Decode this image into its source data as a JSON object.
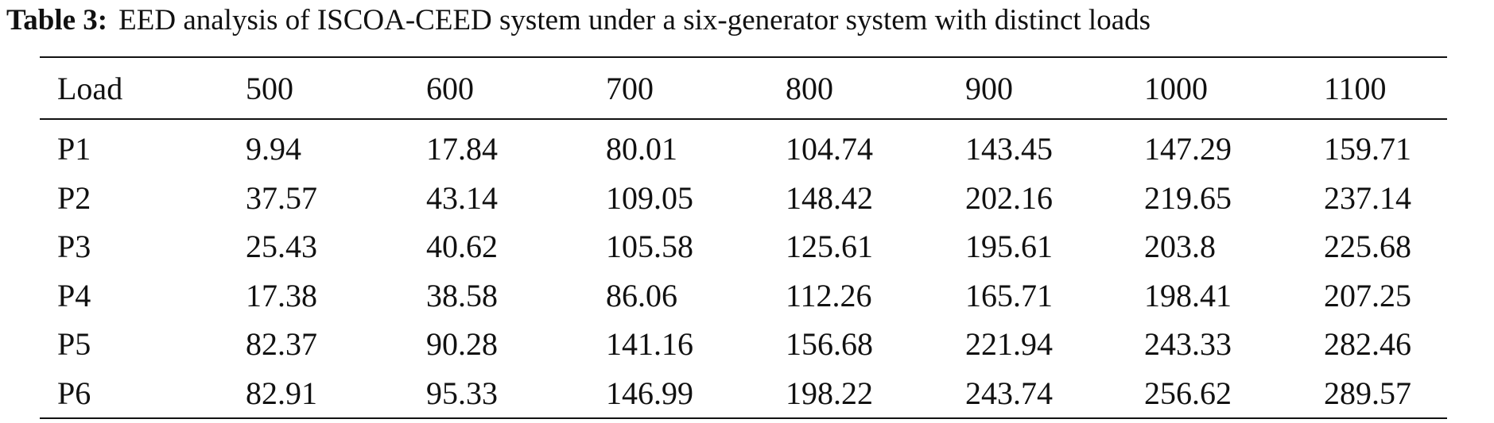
{
  "caption": {
    "label": "Table 3:",
    "text": "EED analysis of ISCOA-CEED system under a six-generator system with distinct loads"
  },
  "table": {
    "header": [
      "Load",
      "500",
      "600",
      "700",
      "800",
      "900",
      "1000",
      "1100"
    ],
    "rows": [
      [
        "P1",
        "9.94",
        "17.84",
        "80.01",
        "104.74",
        "143.45",
        "147.29",
        "159.71"
      ],
      [
        "P2",
        "37.57",
        "43.14",
        "109.05",
        "148.42",
        "202.16",
        "219.65",
        "237.14"
      ],
      [
        "P3",
        "25.43",
        "40.62",
        "105.58",
        "125.61",
        "195.61",
        "203.8",
        "225.68"
      ],
      [
        "P4",
        "17.38",
        "38.58",
        "86.06",
        "112.26",
        "165.71",
        "198.41",
        "207.25"
      ],
      [
        "P5",
        "82.37",
        "90.28",
        "141.16",
        "156.68",
        "221.94",
        "243.33",
        "282.46"
      ],
      [
        "P6",
        "82.91",
        "95.33",
        "146.99",
        "198.22",
        "243.74",
        "256.62",
        "289.57"
      ]
    ]
  }
}
